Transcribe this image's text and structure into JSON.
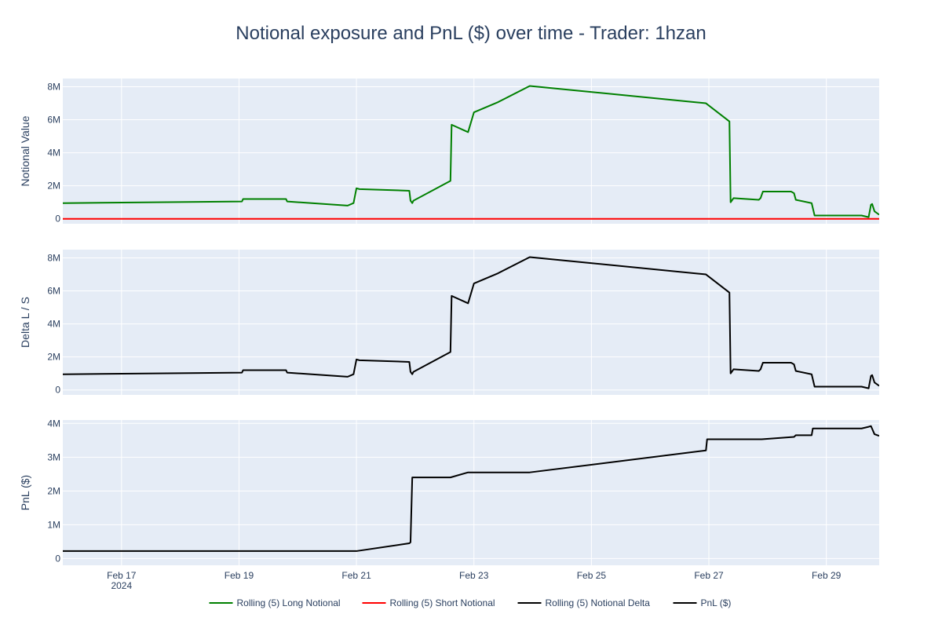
{
  "chart_data": {
    "type": "line",
    "title": "Notional exposure and PnL ($) over time - Trader: 1hzan",
    "x_tick_labels": [
      "Feb 17",
      "Feb 19",
      "Feb 21",
      "Feb 23",
      "Feb 25",
      "Feb 27",
      "Feb 29"
    ],
    "x_tick_dates": [
      17,
      19,
      21,
      23,
      25,
      27,
      29
    ],
    "x_year_label": "2024",
    "x_range": [
      16.0,
      29.9
    ],
    "panels": [
      {
        "ylabel": "Notional Value",
        "ylim": [
          -300000,
          8500000
        ],
        "y_ticks": [
          0,
          2000000,
          4000000,
          6000000,
          8000000
        ],
        "y_tick_labels": [
          "0",
          "2M",
          "4M",
          "6M",
          "8M"
        ],
        "series": [
          {
            "name": "Rolling (5) Long Notional",
            "color": "#008000",
            "x": [
              16.0,
              19.05,
              19.07,
              19.8,
              19.82,
              20.85,
              20.95,
              21.0,
              21.05,
              21.9,
              21.92,
              21.95,
              21.97,
              22.6,
              22.62,
              22.9,
              23.0,
              23.4,
              23.95,
              26.95,
              27.35,
              27.37,
              27.42,
              27.85,
              27.88,
              27.92,
              28.4,
              28.45,
              28.48,
              28.75,
              28.8,
              29.6,
              29.72,
              29.76,
              29.78,
              29.82,
              29.9
            ],
            "y": [
              950000,
              1050000,
              1200000,
              1200000,
              1050000,
              800000,
              950000,
              1850000,
              1800000,
              1700000,
              1100000,
              950000,
              1100000,
              2300000,
              5700000,
              5250000,
              6450000,
              7050000,
              8050000,
              7000000,
              5900000,
              1000000,
              1250000,
              1150000,
              1250000,
              1650000,
              1650000,
              1550000,
              1150000,
              950000,
              200000,
              200000,
              100000,
              850000,
              900000,
              450000,
              250000
            ]
          },
          {
            "name": "Rolling (5) Short Notional",
            "color": "#ff0000",
            "x": [
              16.0,
              29.9
            ],
            "y": [
              0,
              0
            ]
          }
        ]
      },
      {
        "ylabel": "Delta L / S",
        "ylim": [
          -300000,
          8500000
        ],
        "y_ticks": [
          0,
          2000000,
          4000000,
          6000000,
          8000000
        ],
        "y_tick_labels": [
          "0",
          "2M",
          "4M",
          "6M",
          "8M"
        ],
        "series": [
          {
            "name": "Rolling (5) Notional Delta",
            "color": "#000000",
            "x": [
              16.0,
              19.05,
              19.07,
              19.8,
              19.82,
              20.85,
              20.95,
              21.0,
              21.05,
              21.9,
              21.92,
              21.95,
              21.97,
              22.6,
              22.62,
              22.9,
              23.0,
              23.4,
              23.95,
              26.95,
              27.35,
              27.37,
              27.42,
              27.85,
              27.88,
              27.92,
              28.4,
              28.45,
              28.48,
              28.75,
              28.8,
              29.6,
              29.72,
              29.76,
              29.78,
              29.82,
              29.9
            ],
            "y": [
              950000,
              1050000,
              1200000,
              1200000,
              1050000,
              800000,
              950000,
              1850000,
              1800000,
              1700000,
              1100000,
              950000,
              1100000,
              2300000,
              5700000,
              5250000,
              6450000,
              7050000,
              8050000,
              7000000,
              5900000,
              1000000,
              1250000,
              1150000,
              1250000,
              1650000,
              1650000,
              1550000,
              1150000,
              950000,
              200000,
              200000,
              100000,
              850000,
              900000,
              450000,
              250000
            ]
          }
        ]
      },
      {
        "ylabel": "PnL ($)",
        "ylim": [
          -200000,
          4100000
        ],
        "y_ticks": [
          0,
          1000000,
          2000000,
          3000000,
          4000000
        ],
        "y_tick_labels": [
          "0",
          "1M",
          "2M",
          "3M",
          "4M"
        ],
        "series": [
          {
            "name": "PnL ($)",
            "color": "#000000",
            "x": [
              16.0,
              21.0,
              21.9,
              21.92,
              21.95,
              22.6,
              22.9,
              23.95,
              26.95,
              26.97,
              27.9,
              28.45,
              28.48,
              28.75,
              28.77,
              29.6,
              29.72,
              29.76,
              29.82,
              29.9
            ],
            "y": [
              220000,
              220000,
              450000,
              480000,
              2400000,
              2400000,
              2550000,
              2550000,
              3200000,
              3530000,
              3530000,
              3600000,
              3650000,
              3650000,
              3850000,
              3850000,
              3900000,
              3920000,
              3680000,
              3630000
            ]
          }
        ]
      }
    ],
    "legend": {
      "placement": "bottom-center",
      "entries": [
        {
          "name": "Rolling (5) Long Notional",
          "color": "#008000"
        },
        {
          "name": "Rolling (5) Short Notional",
          "color": "#ff0000"
        },
        {
          "name": "Rolling (5) Notional Delta",
          "color": "#000000"
        },
        {
          "name": "PnL ($)",
          "color": "#000000"
        }
      ]
    },
    "grid": true,
    "plot_bg": "#e5ecf6",
    "grid_color": "#ffffff",
    "text_color": "#2a3f5f"
  }
}
